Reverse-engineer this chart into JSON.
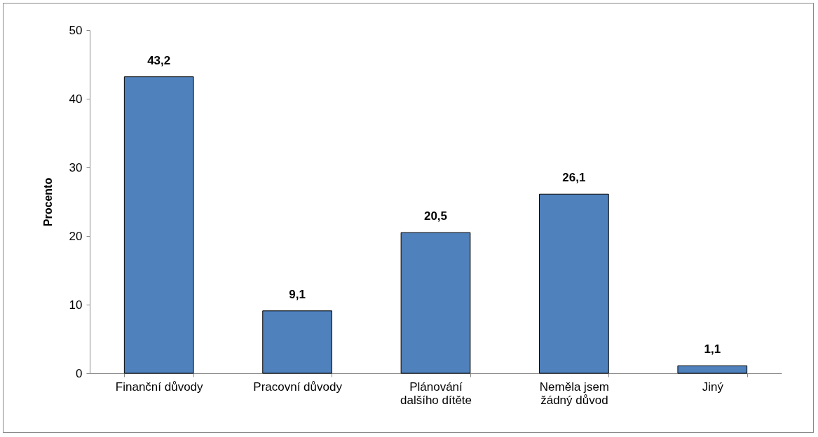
{
  "chart_data": {
    "type": "bar",
    "ylabel": "Procento",
    "categories": [
      "Finanční důvody",
      "Pracovní důvody",
      "Plánování dalšího dítěte",
      "Neměla jsem žádný důvod",
      "Jiný"
    ],
    "values": [
      43.2,
      9.1,
      20.5,
      26.1,
      1.1
    ],
    "value_labels": [
      "43,2",
      "9,1",
      "20,5",
      "26,1",
      "1,1"
    ],
    "color": "#4f81bd",
    "ylim": [
      0,
      50
    ],
    "yticks": [
      0,
      10,
      20,
      30,
      40,
      50
    ],
    "grid": false
  }
}
